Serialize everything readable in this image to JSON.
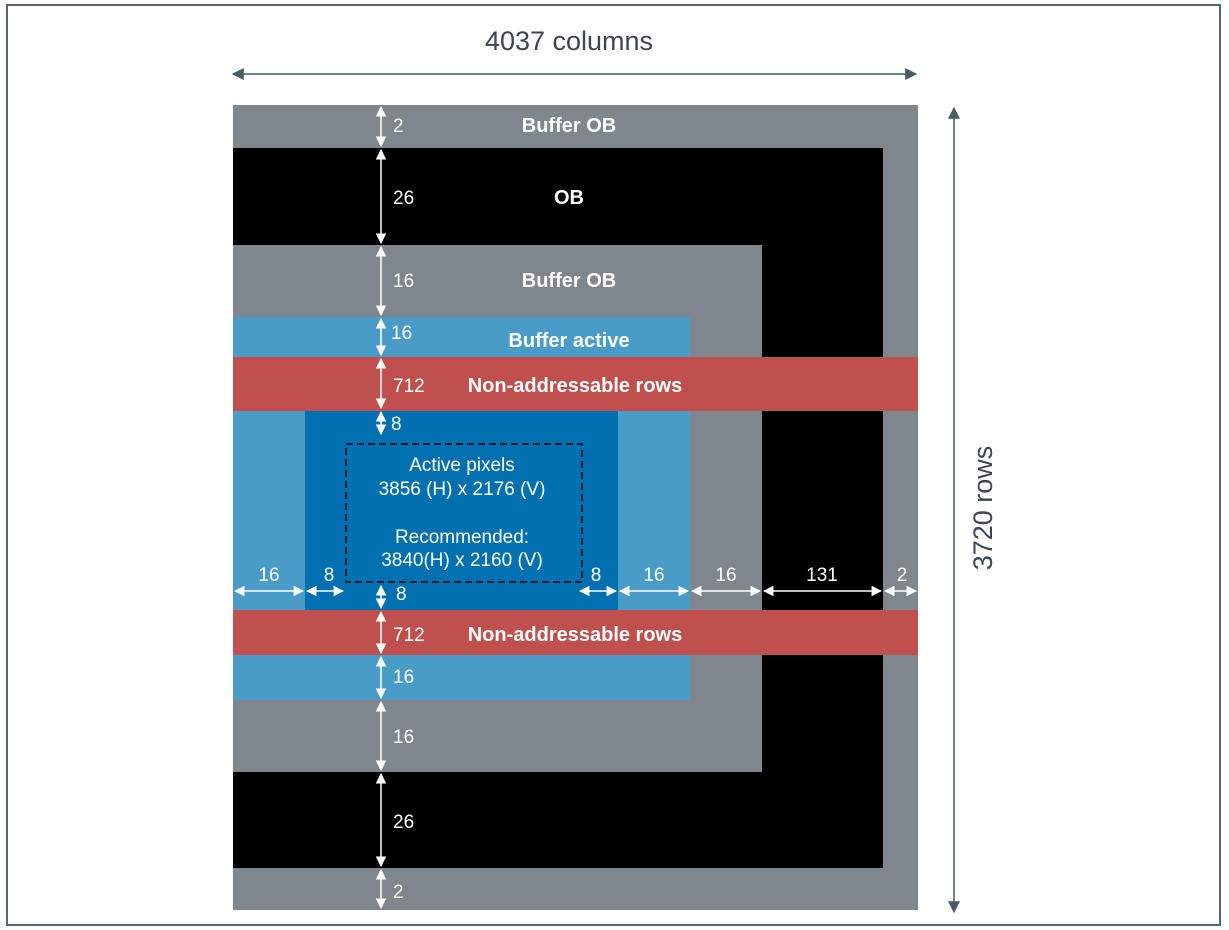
{
  "dimensions": {
    "columns_label": "4037 columns",
    "rows_label": "3720 rows"
  },
  "regions": {
    "buffer_ob_top": "Buffer OB",
    "ob": "OB",
    "buffer_ob_inner": "Buffer OB",
    "buffer_active": "Buffer active",
    "non_addressable_top": "Non-addressable rows",
    "non_addressable_bottom": "Non-addressable rows"
  },
  "active": {
    "line1": "Active pixels",
    "line2": "3856 (H) x 2176 (V)",
    "line3": "Recommended:",
    "line4": "3840(H) x 2160 (V)"
  },
  "vertical_dims": {
    "buffer_ob_top": "2",
    "ob_top": "26",
    "buffer_ob_top_inner": "16",
    "buffer_active_top": "16",
    "non_addressable_top": "712",
    "active_margin_top": "8",
    "active_margin_bottom": "8",
    "non_addressable_bottom": "712",
    "buffer_active_bottom": "16",
    "buffer_ob_bottom_inner": "16",
    "ob_bottom": "26",
    "buffer_ob_bottom": "2"
  },
  "horizontal_dims": {
    "buffer_active_left": "16",
    "active_margin_left": "8",
    "active_margin_right": "8",
    "buffer_active_right": "16",
    "buffer_ob_right": "16",
    "ob_right": "131",
    "buffer_ob_outer_right": "2"
  },
  "colors": {
    "gray": "#7f878c",
    "black": "#000000",
    "light_blue": "#4a9cc8",
    "dark_blue": "#0070b0",
    "red": "#c0504d",
    "arrow_gray": "#4a5a66"
  }
}
